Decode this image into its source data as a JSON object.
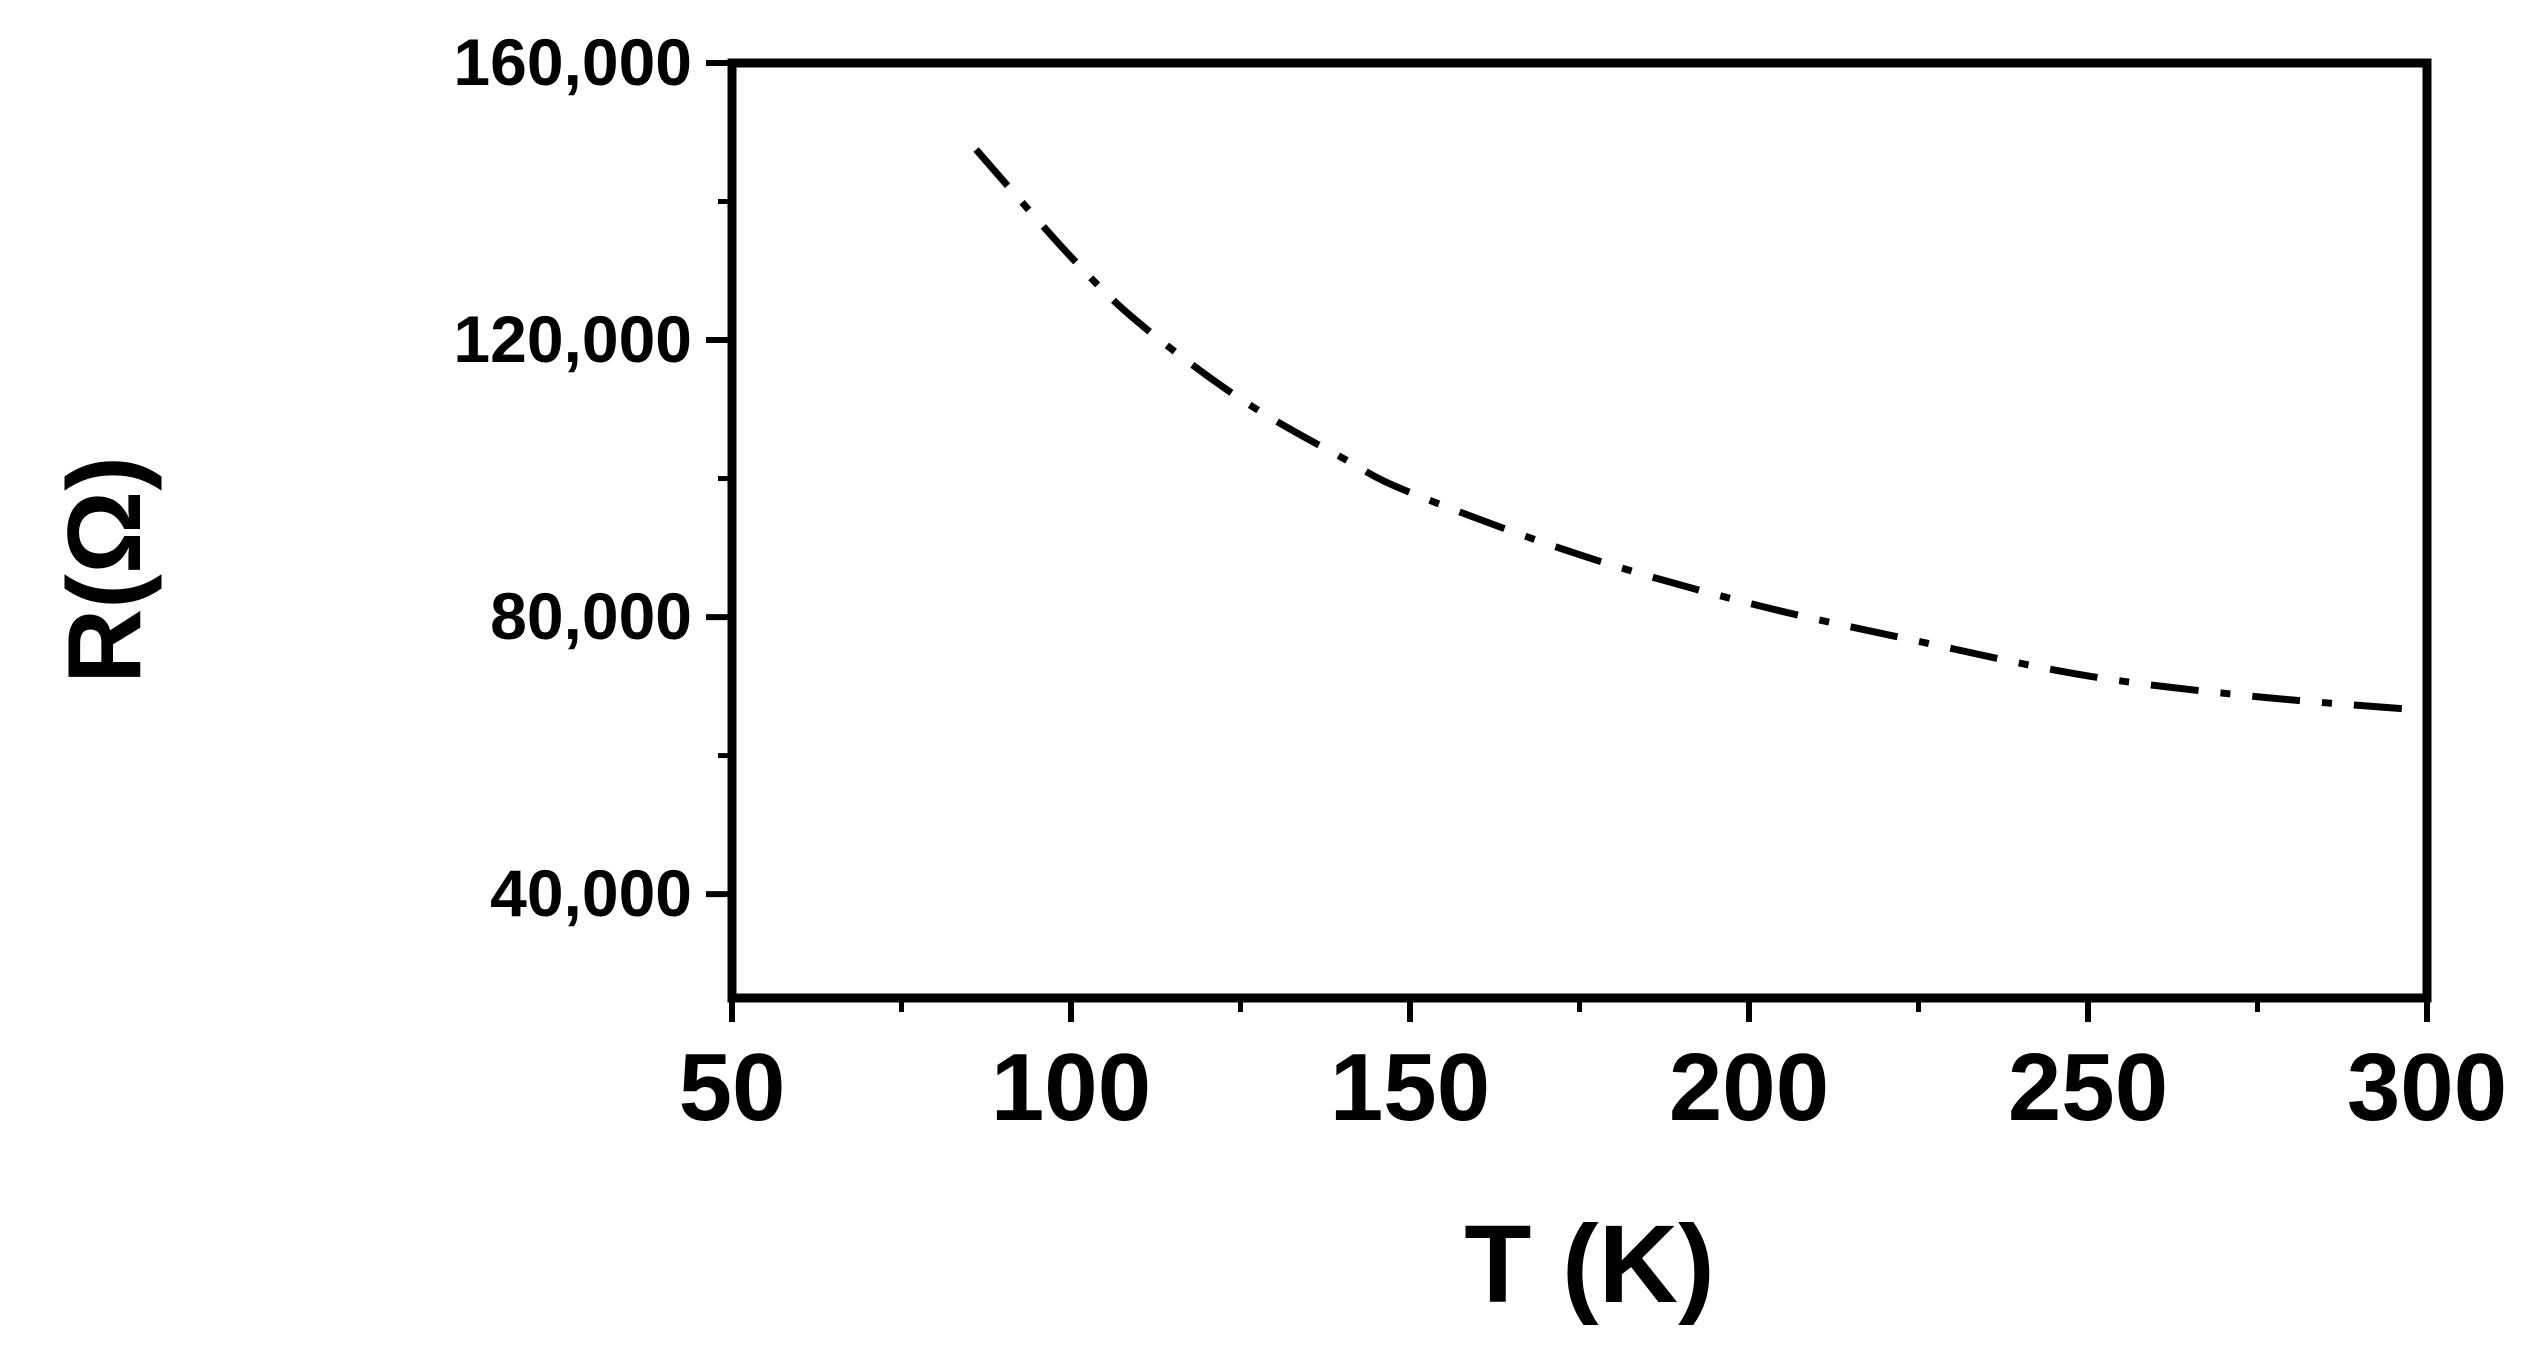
{
  "chart_data": {
    "type": "line",
    "xlabel": "T (K)",
    "ylabel": "R(Ω)",
    "xlim": [
      50,
      300
    ],
    "ylim": [
      25000,
      160000
    ],
    "x_ticks": [
      50,
      100,
      150,
      200,
      250,
      300
    ],
    "x_tick_labels": [
      "50",
      "100",
      "150",
      "200",
      "250",
      "300"
    ],
    "x_minor_ticks": [
      75,
      125,
      175,
      225,
      275
    ],
    "y_ticks": [
      40000,
      80000,
      120000,
      160000
    ],
    "y_tick_labels": [
      "40,000",
      "80,000",
      "120,000",
      "160,000"
    ],
    "y_minor_ticks": [
      60000,
      100000,
      140000
    ],
    "grid": false,
    "line_style": "dash-dot",
    "line_color": "#000000",
    "series": [
      {
        "x": [
          86,
          100,
          110,
          125,
          140,
          150,
          175,
          200,
          225,
          250,
          275,
          300
        ],
        "values": [
          147500,
          132000,
          122500,
          111500,
          103000,
          98000,
          89000,
          82000,
          76500,
          71500,
          68500,
          66500
        ]
      }
    ]
  }
}
